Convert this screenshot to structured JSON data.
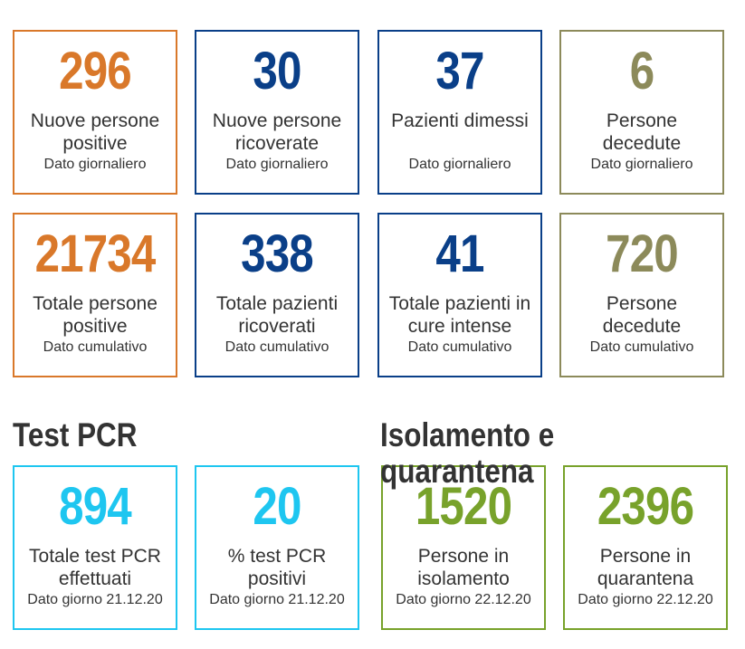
{
  "colors": {
    "orange": "#d9782a",
    "blue": "#0a3f88",
    "olive": "#8c8a5a",
    "cyan": "#1ec6f0",
    "green": "#78a22b"
  },
  "daily": [
    {
      "value": "296",
      "label": "Nuove persone positive",
      "sub": "Dato giornaliero"
    },
    {
      "value": "30",
      "label": "Nuove persone ricoverate",
      "sub": "Dato giornaliero"
    },
    {
      "value": "37",
      "label": "Pazienti dimessi",
      "sub": "Dato giornaliero"
    },
    {
      "value": "6",
      "label": "Persone decedute",
      "sub": "Dato giornaliero"
    }
  ],
  "cumulative": [
    {
      "value": "21734",
      "label": "Totale persone positive",
      "sub": "Dato cumulativo"
    },
    {
      "value": "338",
      "label": "Totale pazienti ricoverati",
      "sub": "Dato cumulativo"
    },
    {
      "value": "41",
      "label": "Totale pazienti in cure intense",
      "sub": "Dato cumulativo"
    },
    {
      "value": "720",
      "label": "Persone decedute",
      "sub": "Dato cumulativo"
    }
  ],
  "pcr": {
    "title": "Test PCR",
    "cards": [
      {
        "value": "894",
        "label": "Totale test PCR effettuati",
        "sub": "Dato giorno 21.12.20"
      },
      {
        "value": "20",
        "label": "% test PCR positivi",
        "sub": "Dato giorno 21.12.20"
      }
    ]
  },
  "isolation": {
    "title": "Isolamento e quarantena",
    "cards": [
      {
        "value": "1520",
        "label": "Persone in isolamento",
        "sub": "Dato giorno 22.12.20"
      },
      {
        "value": "2396",
        "label": "Persone in quarantena",
        "sub": "Dato giorno 22.12.20"
      }
    ]
  }
}
